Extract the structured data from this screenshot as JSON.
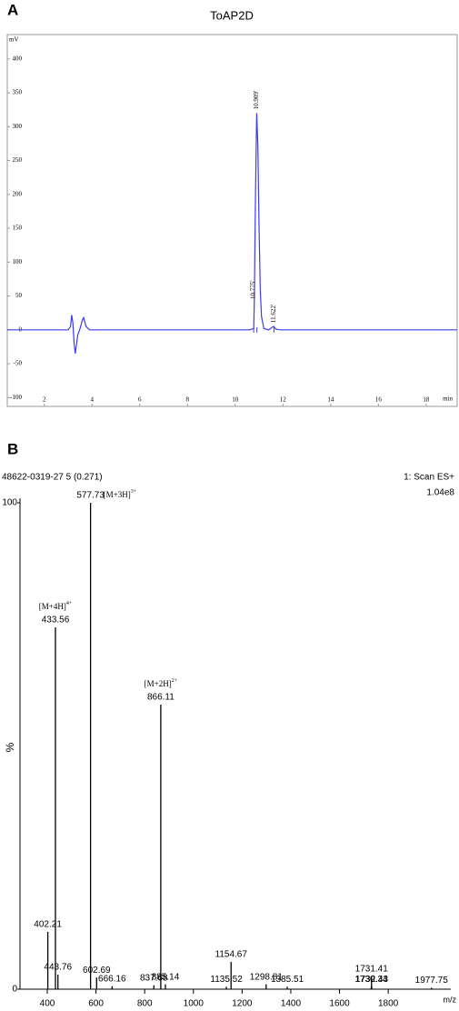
{
  "chart_data": [
    {
      "type": "line",
      "panel": "A",
      "title": "ToAP2D",
      "y_label": "mV",
      "x_label": "min",
      "x": [
        0.45,
        3.0,
        3.1,
        3.15,
        3.2,
        3.25,
        3.3,
        3.4,
        3.5,
        3.6,
        3.65,
        3.75,
        3.9,
        10.6,
        10.775,
        10.8,
        10.85,
        10.9,
        10.95,
        11.0,
        11.05,
        11.1,
        11.2,
        11.4,
        11.55,
        11.62,
        11.7,
        11.9,
        19.3
      ],
      "values": [
        0,
        0,
        5,
        22,
        10,
        -20,
        -35,
        -8,
        2,
        15,
        18,
        5,
        0,
        0,
        2,
        40,
        200,
        320,
        270,
        150,
        60,
        20,
        2,
        0,
        4,
        5,
        1,
        0,
        0
      ],
      "color": "#3b3bf0",
      "peak_labels": [
        {
          "value": 10.909,
          "label": "10.909'"
        },
        {
          "value": 10.775,
          "label": "10.775'"
        },
        {
          "value": 11.622,
          "label": "11.622'"
        }
      ],
      "xlim": [
        0.45,
        19.3
      ],
      "ylim": [
        -113,
        436
      ],
      "xticks": [
        2,
        4,
        6,
        8,
        10,
        12,
        14,
        16,
        18
      ],
      "yticks": [
        -100,
        -50,
        0,
        50,
        100,
        150,
        200,
        250,
        300,
        350,
        400
      ]
    },
    {
      "type": "bar",
      "panel": "B",
      "title": "48622-0319-27 5 (0.271)",
      "scan": "1: Scan ES+",
      "scale": "1.04e8",
      "y_label": "%",
      "x_label": "m/z",
      "color": "#000000",
      "x": [
        402.21,
        433.56,
        443.76,
        577.73,
        602.69,
        666.16,
        837.68,
        866.11,
        885.14,
        1135.52,
        1154.67,
        1298.81,
        1385.51,
        1730.34,
        1731.41,
        1732.43,
        1977.75
      ],
      "values": [
        11.8,
        74.4,
        3,
        100,
        2.4,
        0.6,
        0.8,
        58.5,
        1,
        0.5,
        5.6,
        1,
        0.5,
        0.5,
        2.6,
        0.5,
        0.3
      ],
      "annotations": [
        {
          "x": 577.73,
          "text": "[M+3H]",
          "sup": "3+"
        },
        {
          "x": 433.56,
          "text": "[M+4H]",
          "sup": "4+"
        },
        {
          "x": 866.11,
          "text": "[M+2H]",
          "sup": "2+"
        }
      ],
      "xlim": [
        288,
        2072
      ],
      "ylim": [
        0,
        100
      ],
      "xticks": [
        400,
        600,
        800,
        1000,
        1200,
        1400,
        1600,
        1800
      ],
      "yticks": [
        0,
        100
      ]
    }
  ]
}
